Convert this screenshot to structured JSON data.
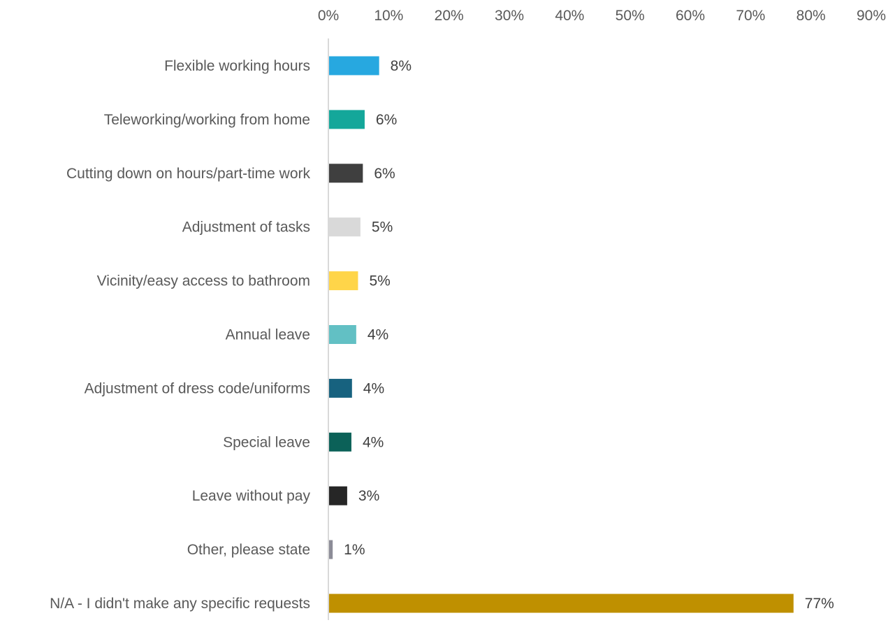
{
  "chart_data": {
    "type": "bar",
    "orientation": "horizontal",
    "title": "",
    "xlabel": "",
    "ylabel": "",
    "xlim": [
      0,
      90
    ],
    "axis_position": "top",
    "grid": false,
    "legend": false,
    "ticks": [
      "0%",
      "10%",
      "20%",
      "30%",
      "40%",
      "50%",
      "60%",
      "70%",
      "80%",
      "90%"
    ],
    "tick_values": [
      0,
      10,
      20,
      30,
      40,
      50,
      60,
      70,
      80,
      90
    ],
    "categories": [
      "Flexible working hours",
      "Teleworking/working from home",
      "Cutting down on hours/part-time work",
      "Adjustment of tasks",
      "Vicinity/easy access to bathroom",
      "Annual leave",
      "Adjustment of dress code/uniforms",
      "Special leave",
      "Leave without pay",
      "Other, please state",
      "N/A - I didn't make any specific requests"
    ],
    "values": [
      8.3,
      5.9,
      5.6,
      5.2,
      4.8,
      4.5,
      3.8,
      3.7,
      3.0,
      0.6,
      77.0
    ],
    "value_labels": [
      "8%",
      "6%",
      "6%",
      "5%",
      "5%",
      "4%",
      "4%",
      "4%",
      "3%",
      "1%",
      "77%"
    ],
    "colors": [
      "#27a8e0",
      "#14a79a",
      "#3f3f3f",
      "#d9d9d9",
      "#ffd549",
      "#62c0c4",
      "#17627f",
      "#0b6158",
      "#262626",
      "#8c8c97",
      "#bf9000"
    ],
    "axis_line_color": "#d9d9d9"
  }
}
